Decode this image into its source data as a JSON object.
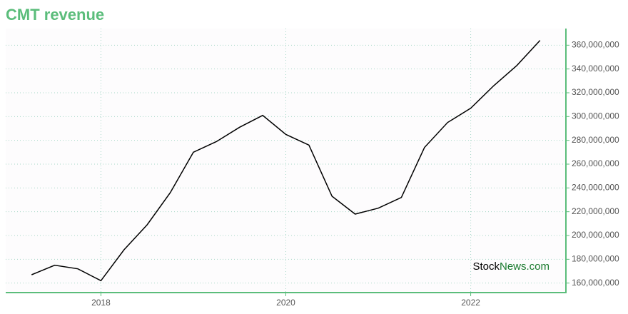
{
  "chart_data": {
    "type": "line",
    "title": "CMT revenue",
    "watermark": [
      "Stock",
      "News.com"
    ],
    "x": [
      2017.25,
      2017.5,
      2017.75,
      2018,
      2018.25,
      2018.5,
      2018.75,
      2019,
      2019.25,
      2019.5,
      2019.75,
      2020,
      2020.25,
      2020.5,
      2020.75,
      2021,
      2021.25,
      2021.5,
      2021.75,
      2022,
      2022.25,
      2022.5,
      2022.75
    ],
    "series": [
      {
        "color": "#000000",
        "values": [
          167000000,
          175000000,
          172000000,
          162000000,
          188000000,
          209000000,
          236000000,
          270000000,
          279000000,
          291000000,
          301000000,
          285000000,
          276000000,
          233000000,
          218000000,
          223000000,
          232000000,
          274000000,
          295000000,
          307000000,
          326000000,
          343000000,
          364000000
        ]
      }
    ],
    "xlim": [
      2016.97,
      2023.03
    ],
    "xticks": [
      2018,
      2020,
      2022
    ],
    "ylim": [
      152000000,
      374000000
    ],
    "yticks": [
      {
        "value": 160000000,
        "label": "160,000,000"
      },
      {
        "value": 180000000,
        "label": "180,000,000"
      },
      {
        "value": 200000000,
        "label": "200,000,000"
      },
      {
        "value": 220000000,
        "label": "220,000,000"
      },
      {
        "value": 240000000,
        "label": "240,000,000"
      },
      {
        "value": 260000000,
        "label": "260,000,000"
      },
      {
        "value": 280000000,
        "label": "280,000,000"
      },
      {
        "value": 300000000,
        "label": "300,000,000"
      },
      {
        "value": 320000000,
        "label": "320,000,000"
      },
      {
        "value": 340000000,
        "label": "340,000,000"
      },
      {
        "value": 360000000,
        "label": "360,000,000"
      }
    ],
    "grid": true,
    "axis_color": "#5bbd7b",
    "title_color": "#5bbd7b"
  }
}
